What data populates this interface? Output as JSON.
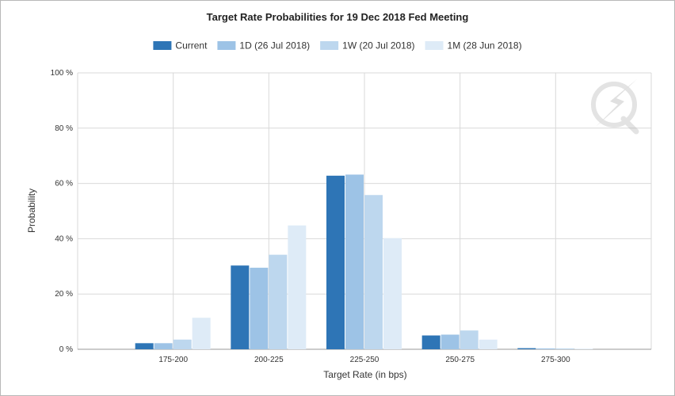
{
  "chart_data": {
    "type": "bar",
    "title": "Target Rate Probabilities for 19 Dec 2018 Fed Meeting",
    "xlabel": "Target Rate (in bps)",
    "ylabel": "Probability",
    "categories": [
      "175-200",
      "200-225",
      "225-250",
      "250-275",
      "275-300"
    ],
    "ylim": [
      0,
      100
    ],
    "yticks": [
      "0 %",
      "20 %",
      "40 %",
      "60 %",
      "80 %",
      "100 %"
    ],
    "ytick_values": [
      0,
      20,
      40,
      60,
      80,
      100
    ],
    "grid": true,
    "legend_position": "top",
    "series": [
      {
        "name": "Current",
        "color": "#2e75b6",
        "values": [
          2.2,
          30.3,
          62.8,
          5.0,
          0.4
        ]
      },
      {
        "name": "1D (26 Jul 2018)",
        "color": "#9dc3e6",
        "values": [
          2.2,
          29.5,
          63.2,
          5.3,
          0.3
        ]
      },
      {
        "name": "1W (20 Jul 2018)",
        "color": "#bdd7ee",
        "values": [
          3.5,
          34.2,
          55.8,
          6.8,
          0.3
        ]
      },
      {
        "name": "1M (28 Jun 2018)",
        "color": "#deebf7",
        "values": [
          11.4,
          44.8,
          40.2,
          3.5,
          0.2
        ]
      }
    ]
  },
  "watermark": {
    "icon": "quikstrike-q-logo-icon"
  }
}
